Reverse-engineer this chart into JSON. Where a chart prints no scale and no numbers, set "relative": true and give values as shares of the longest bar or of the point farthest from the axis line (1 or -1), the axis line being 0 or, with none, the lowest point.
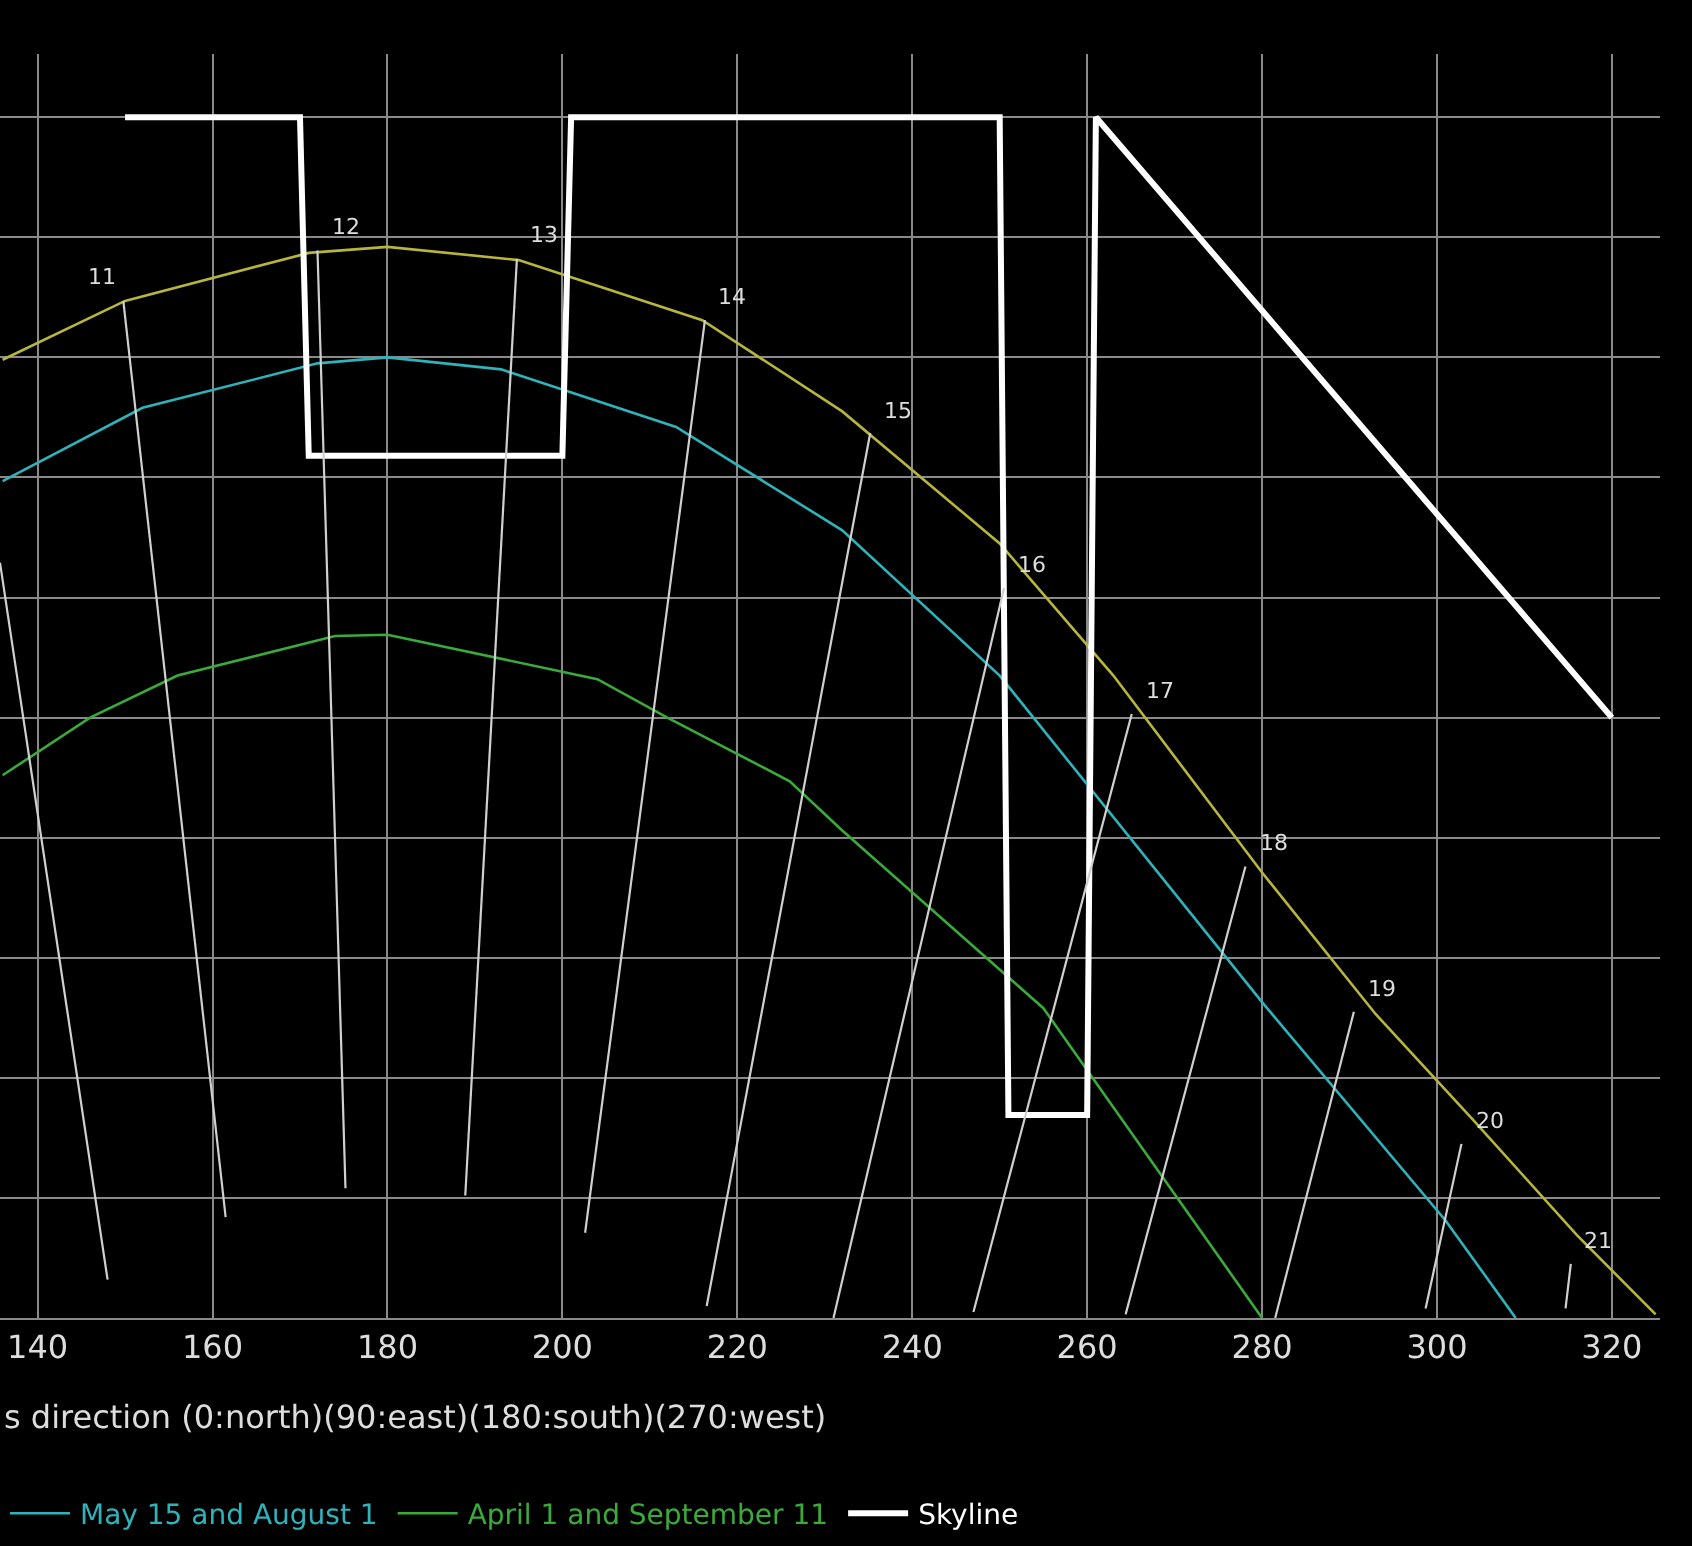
{
  "chart_data": {
    "type": "line",
    "relative": true,
    "xlabel": "s direction (0:north)(90:east)(180:south)(270:west)",
    "xlim": [
      135.7,
      325.5
    ],
    "xticks": [
      140,
      160,
      180,
      200,
      220,
      240,
      260,
      280,
      300,
      320
    ],
    "grid": true,
    "legend": "bottom",
    "marker": "none",
    "line_style": "solid",
    "series": [
      {
        "color": "#b8b53c",
        "x": [
          136,
          150,
          171,
          180,
          195,
          216,
          232,
          250,
          263,
          280,
          293,
          304,
          316,
          325
        ],
        "values": [
          0.798,
          0.847,
          0.887,
          0.892,
          0.881,
          0.831,
          0.755,
          0.645,
          0.535,
          0.371,
          0.253,
          0.166,
          0.069,
          0.003
        ]
      },
      {
        "name": "May 15 and August 1",
        "color": "#2fb3bb",
        "x": [
          136,
          152,
          172,
          180,
          193,
          213,
          232,
          250,
          280,
          301,
          309
        ],
        "values": [
          0.697,
          0.758,
          0.795,
          0.8,
          0.79,
          0.742,
          0.656,
          0.535,
          0.263,
          0.081,
          0
        ]
      },
      {
        "name": "April 1 and September 11",
        "color": "#3aaa3a",
        "x": [
          136,
          146,
          156,
          174,
          180,
          204,
          212,
          226,
          232,
          255,
          280
        ],
        "values": [
          0.452,
          0.5,
          0.535,
          0.568,
          0.569,
          0.532,
          0.5,
          0.447,
          0.406,
          0.258,
          0
        ]
      },
      {
        "name": "Skyline",
        "color": "#ffffff",
        "x": [
          150,
          170,
          171,
          200,
          201,
          250,
          251,
          260,
          261,
          320
        ],
        "values": [
          1,
          1,
          0.718,
          0.718,
          1,
          1,
          0.169,
          0.169,
          1,
          0.5
        ]
      },
      {
        "color": "#d0d0d0",
        "x": [
          135.7,
          148
        ],
        "values": [
          0.629,
          0.032
        ]
      },
      {
        "color": "#d0d0d0",
        "x": [
          149.8,
          161.5
        ],
        "values": [
          0.847,
          0.084
        ]
      },
      {
        "color": "#d0d0d0",
        "x": [
          172,
          175.2
        ],
        "values": [
          0.889,
          0.108
        ]
      },
      {
        "color": "#d0d0d0",
        "x": [
          194.8,
          188.9
        ],
        "values": [
          0.882,
          0.102
        ]
      },
      {
        "color": "#d0d0d0",
        "x": [
          216.3,
          202.6
        ],
        "values": [
          0.831,
          0.071
        ]
      },
      {
        "color": "#d0d0d0",
        "x": [
          235.2,
          216.5
        ],
        "values": [
          0.737,
          0.01
        ]
      },
      {
        "color": "#d0d0d0",
        "x": [
          250.5,
          231
        ],
        "values": [
          0.608,
          0
        ]
      },
      {
        "color": "#d0d0d0",
        "x": [
          265.1,
          247
        ],
        "values": [
          0.503,
          0.005
        ]
      },
      {
        "color": "#d0d0d0",
        "x": [
          278.1,
          264.4
        ],
        "values": [
          0.376,
          0.003
        ]
      },
      {
        "color": "#d0d0d0",
        "x": [
          290.5,
          281.5
        ],
        "values": [
          0.255,
          0
        ]
      },
      {
        "color": "#d0d0d0",
        "x": [
          302.8,
          298.7
        ],
        "values": [
          0.145,
          0.008
        ]
      },
      {
        "color": "#d0d0d0",
        "x": [
          315.3,
          314.7
        ],
        "values": [
          0.045,
          0.008
        ]
      }
    ],
    "annotations": [
      {
        "text": "11",
        "x": 149.8,
        "y": 0.847
      },
      {
        "text": "12",
        "x": 172,
        "y": 0.889
      },
      {
        "text": "13",
        "x": 194.8,
        "y": 0.882
      },
      {
        "text": "14",
        "x": 216.3,
        "y": 0.831
      },
      {
        "text": "15",
        "x": 235.2,
        "y": 0.737
      },
      {
        "text": "16",
        "x": 250.5,
        "y": 0.608
      },
      {
        "text": "17",
        "x": 265.1,
        "y": 0.503
      },
      {
        "text": "18",
        "x": 278.1,
        "y": 0.376
      },
      {
        "text": "19",
        "x": 290.5,
        "y": 0.255
      },
      {
        "text": "20",
        "x": 302.8,
        "y": 0.145
      },
      {
        "text": "21",
        "x": 315.3,
        "y": 0.045
      }
    ]
  }
}
